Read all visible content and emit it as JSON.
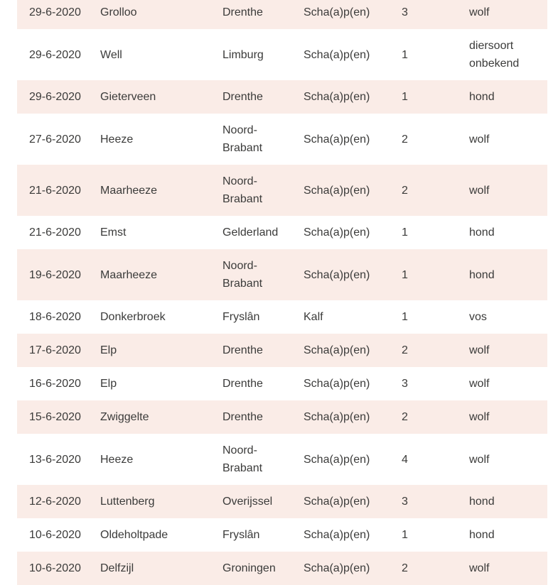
{
  "colors": {
    "row_stripe": "#faece7",
    "text": "#3b3b3a",
    "background": "#ffffff"
  },
  "table": {
    "row_fields": [
      "date",
      "place",
      "province",
      "animal",
      "count",
      "cause"
    ],
    "rows": [
      {
        "date": "29-6-2020",
        "place": "Grolloo",
        "province": "Drenthe",
        "animal": "Scha(a)p(en)",
        "count": "3",
        "cause": "wolf"
      },
      {
        "date": "29-6-2020",
        "place": "Well",
        "province": "Limburg",
        "animal": "Scha(a)p(en)",
        "count": "1",
        "cause": "diersoort onbekend"
      },
      {
        "date": "29-6-2020",
        "place": "Gieterveen",
        "province": "Drenthe",
        "animal": "Scha(a)p(en)",
        "count": "1",
        "cause": "hond"
      },
      {
        "date": "27-6-2020",
        "place": "Heeze",
        "province": "Noord-Brabant",
        "animal": "Scha(a)p(en)",
        "count": "2",
        "cause": "wolf"
      },
      {
        "date": "21-6-2020",
        "place": "Maarheeze",
        "province": "Noord-Brabant",
        "animal": "Scha(a)p(en)",
        "count": "2",
        "cause": "wolf"
      },
      {
        "date": "21-6-2020",
        "place": "Emst",
        "province": "Gelderland",
        "animal": "Scha(a)p(en)",
        "count": "1",
        "cause": "hond"
      },
      {
        "date": "19-6-2020",
        "place": "Maarheeze",
        "province": "Noord-Brabant",
        "animal": "Scha(a)p(en)",
        "count": "1",
        "cause": "hond"
      },
      {
        "date": "18-6-2020",
        "place": "Donkerbroek",
        "province": "Fryslân",
        "animal": "Kalf",
        "count": "1",
        "cause": "vos"
      },
      {
        "date": "17-6-2020",
        "place": "Elp",
        "province": "Drenthe",
        "animal": "Scha(a)p(en)",
        "count": "2",
        "cause": "wolf"
      },
      {
        "date": "16-6-2020",
        "place": "Elp",
        "province": "Drenthe",
        "animal": "Scha(a)p(en)",
        "count": "3",
        "cause": "wolf"
      },
      {
        "date": "15-6-2020",
        "place": "Zwiggelte",
        "province": "Drenthe",
        "animal": "Scha(a)p(en)",
        "count": "2",
        "cause": "wolf"
      },
      {
        "date": "13-6-2020",
        "place": "Heeze",
        "province": "Noord-Brabant",
        "animal": "Scha(a)p(en)",
        "count": "4",
        "cause": "wolf"
      },
      {
        "date": "12-6-2020",
        "place": "Luttenberg",
        "province": "Overijssel",
        "animal": "Scha(a)p(en)",
        "count": "3",
        "cause": "hond"
      },
      {
        "date": "10-6-2020",
        "place": "Oldeholtpade",
        "province": "Fryslân",
        "animal": "Scha(a)p(en)",
        "count": "1",
        "cause": "hond"
      },
      {
        "date": "10-6-2020",
        "place": "Delfzijl",
        "province": "Groningen",
        "animal": "Scha(a)p(en)",
        "count": "2",
        "cause": "wolf"
      }
    ]
  }
}
